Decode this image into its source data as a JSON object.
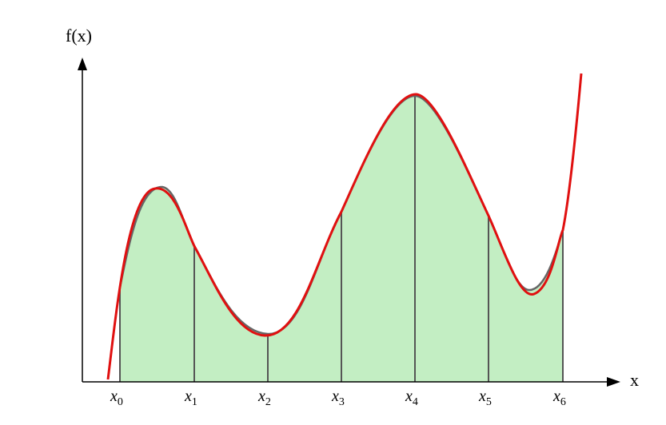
{
  "diagram": {
    "y_axis_label": "f(x)",
    "x_axis_label": "x",
    "nodes": [
      {
        "base": "x",
        "sub": "0"
      },
      {
        "base": "x",
        "sub": "1"
      },
      {
        "base": "x",
        "sub": "2"
      },
      {
        "base": "x",
        "sub": "3"
      },
      {
        "base": "x",
        "sub": "4"
      },
      {
        "base": "x",
        "sub": "5"
      },
      {
        "base": "x",
        "sub": "6"
      }
    ],
    "colors": {
      "fill": "#c3eec3",
      "function_curve": "#666666",
      "approximation_curve": "#e01010",
      "node_lines": "#555555",
      "axes": "#000000"
    }
  }
}
